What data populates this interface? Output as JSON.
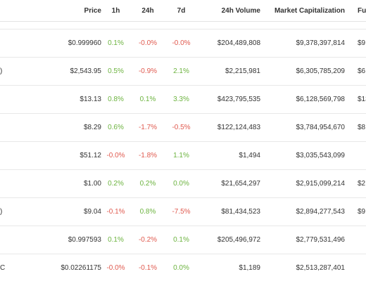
{
  "colors": {
    "positive": "#6cb33f",
    "negative": "#e05a4f",
    "text": "#333333",
    "border": "#e8e8e8"
  },
  "headers": {
    "name": "",
    "price": "Price",
    "h1": "1h",
    "h24": "24h",
    "d7": "7d",
    "volume": "24h Volume",
    "mcap": "Market Capitalization",
    "fdv": "Fully Diluted"
  },
  "rows": [
    {
      "name": "",
      "price": "$0.999960",
      "h1": "0.1%",
      "h24": "-0.0%",
      "d7": "-0.0%",
      "volume": "$204,489,808",
      "mcap": "$9,378,397,814",
      "fdv": "$9"
    },
    {
      "name": ")",
      "price": "$2,543.95",
      "h1": "0.5%",
      "h24": "-0.9%",
      "d7": "2.1%",
      "volume": "$2,215,981",
      "mcap": "$6,305,785,209",
      "fdv": "$6"
    },
    {
      "name": "",
      "price": "$13.13",
      "h1": "0.8%",
      "h24": "0.1%",
      "d7": "3.3%",
      "volume": "$423,795,535",
      "mcap": "$6,128,569,798",
      "fdv": "$13"
    },
    {
      "name": "",
      "price": "$8.29",
      "h1": "0.6%",
      "h24": "-1.7%",
      "d7": "-0.5%",
      "volume": "$122,124,483",
      "mcap": "$3,784,954,670",
      "fdv": "$8"
    },
    {
      "name": "",
      "price": "$51.12",
      "h1": "-0.0%",
      "h24": "-1.8%",
      "d7": "1.1%",
      "volume": "$1,494",
      "mcap": "$3,035,543,099",
      "fdv": ""
    },
    {
      "name": "",
      "price": "$1.00",
      "h1": "0.2%",
      "h24": "0.2%",
      "d7": "0.0%",
      "volume": "$21,654,297",
      "mcap": "$2,915,099,214",
      "fdv": "$2"
    },
    {
      "name": ")",
      "price": "$9.04",
      "h1": "-0.1%",
      "h24": "0.8%",
      "d7": "-7.5%",
      "volume": "$81,434,523",
      "mcap": "$2,894,277,543",
      "fdv": "$9"
    },
    {
      "name": "",
      "price": "$0.997593",
      "h1": "0.1%",
      "h24": "-0.2%",
      "d7": "0.1%",
      "volume": "$205,496,972",
      "mcap": "$2,779,531,496",
      "fdv": ""
    },
    {
      "name": "C",
      "price": "$0.02261175",
      "h1": "-0.0%",
      "h24": "-0.1%",
      "d7": "0.0%",
      "volume": "$1,189",
      "mcap": "$2,513,287,401",
      "fdv": ""
    }
  ]
}
